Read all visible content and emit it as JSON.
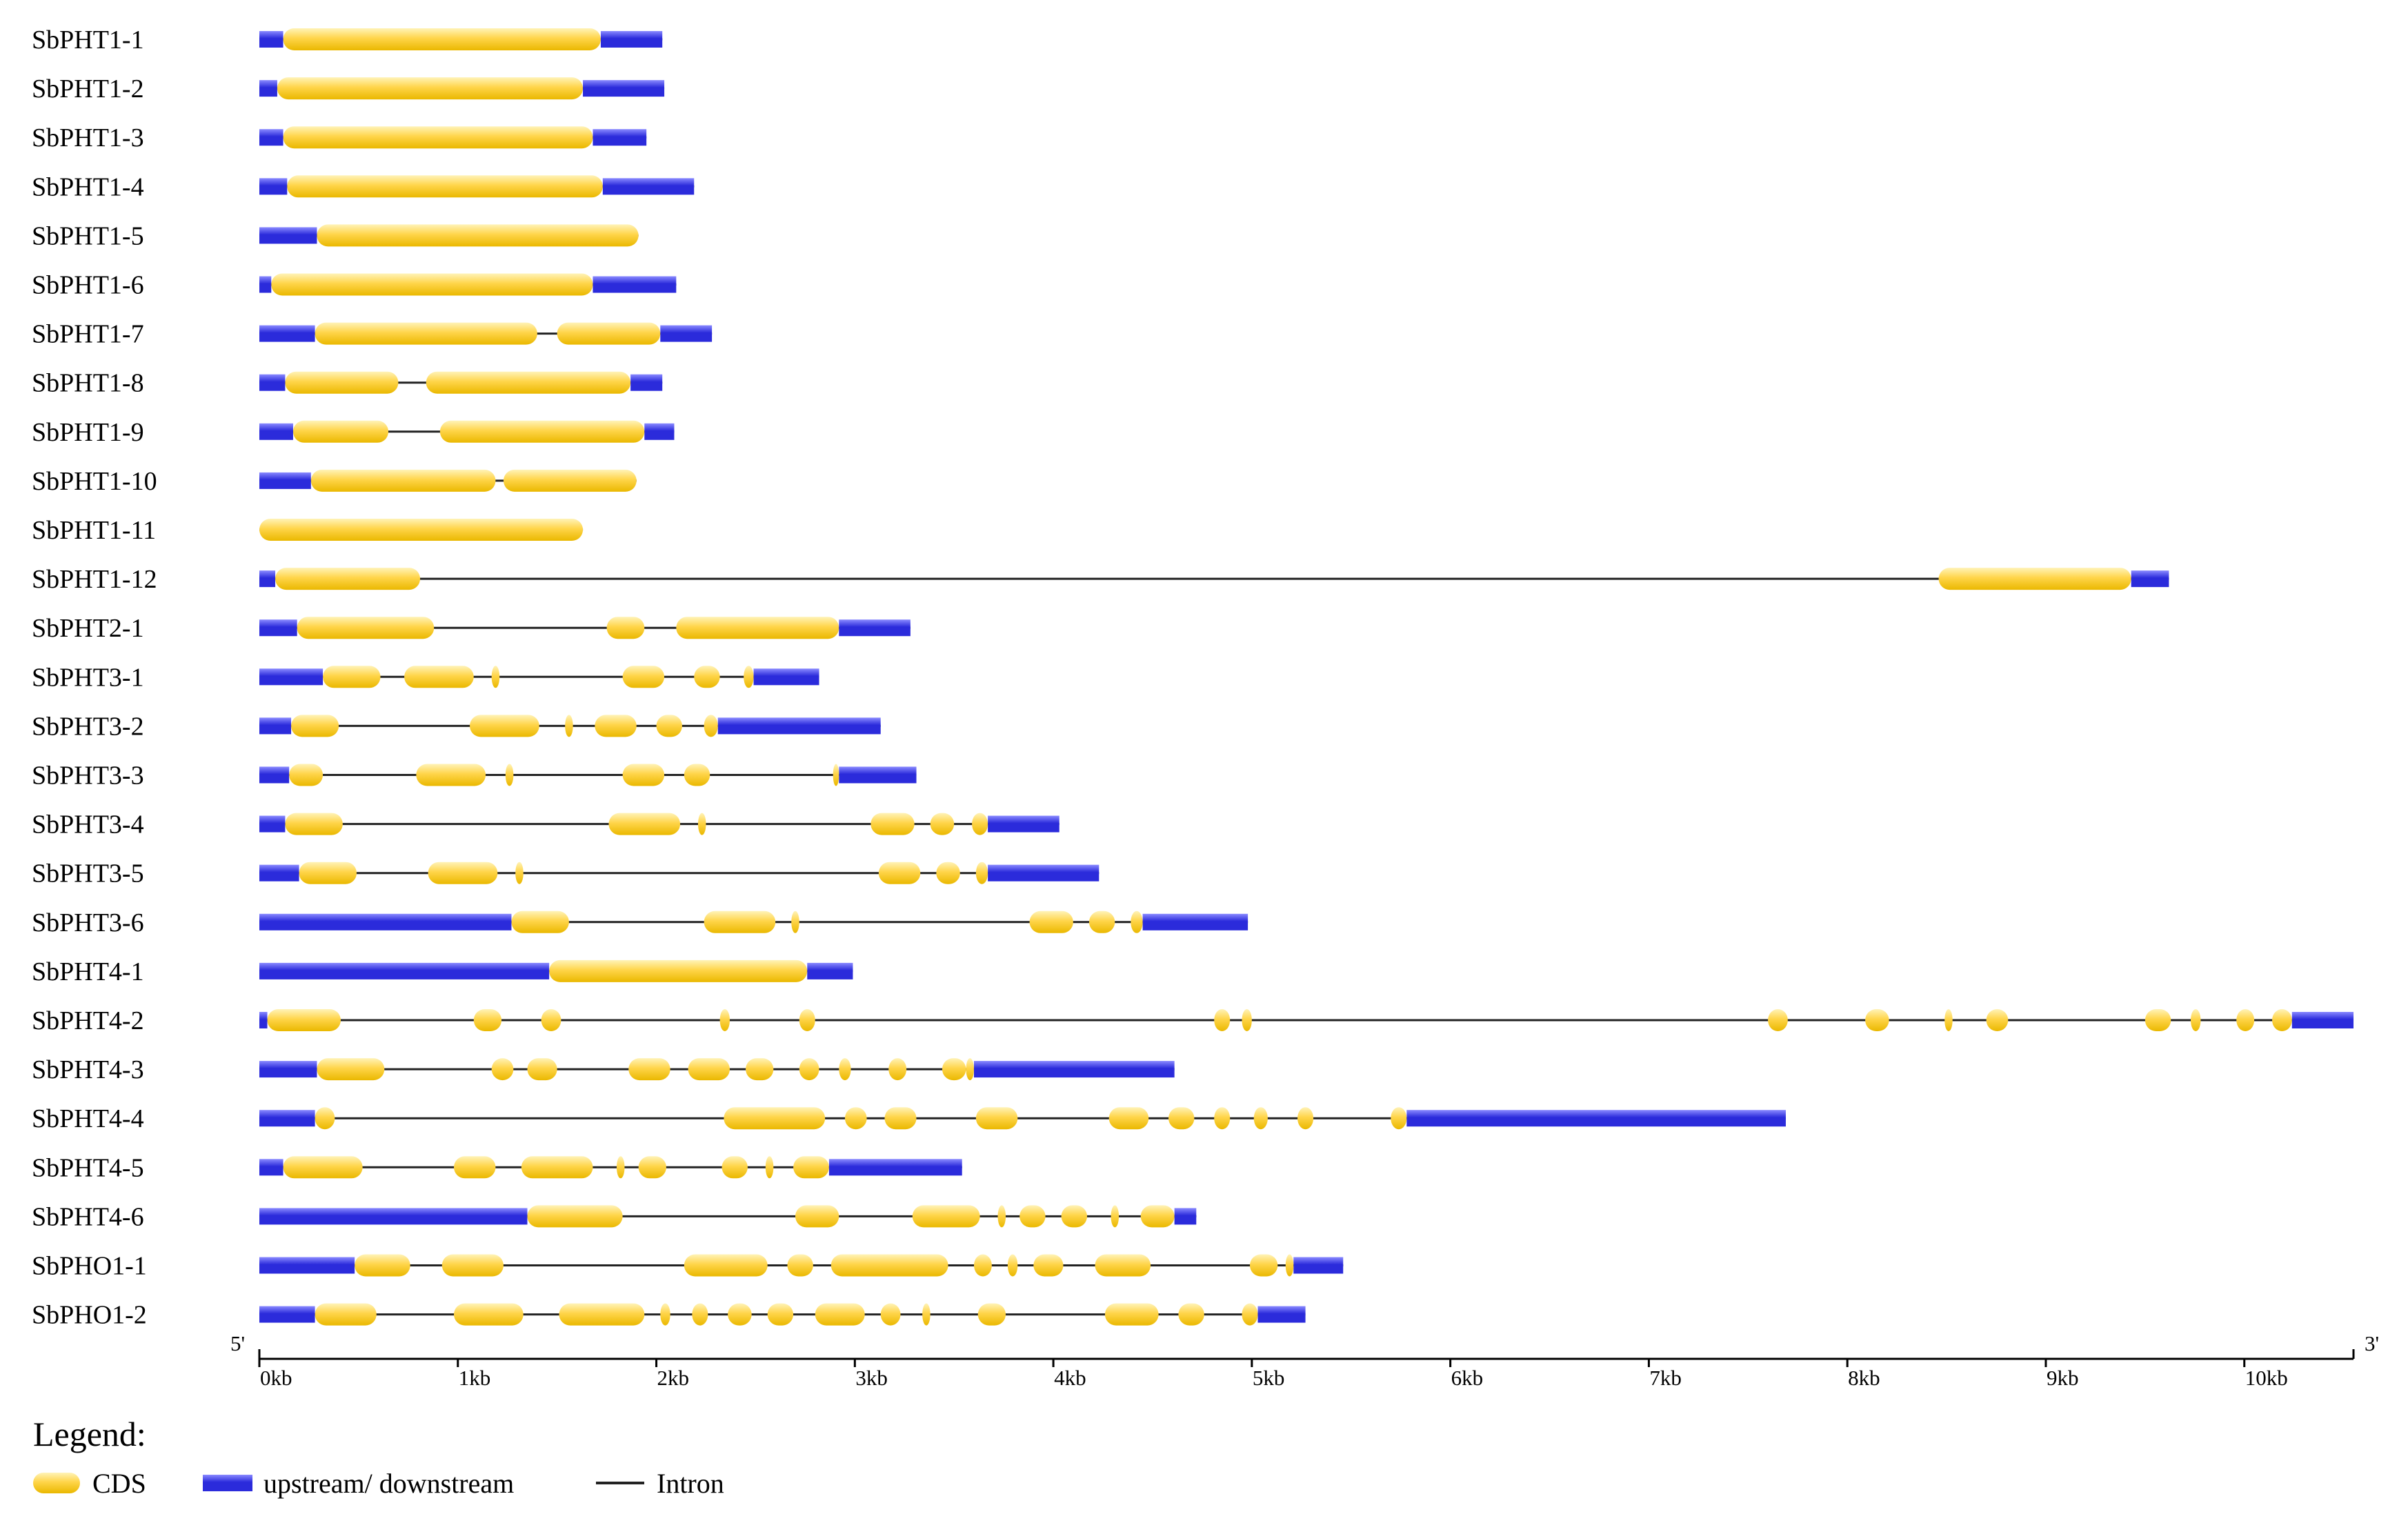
{
  "colors": {
    "cds": "#ffd54a",
    "cds_edge": "#eab800",
    "utr": "#2b2bdb",
    "utr_light": "#8a8aff",
    "intron": "#222222",
    "axis": "#000000"
  },
  "chart_data": {
    "type": "gene-structure",
    "x_unit": "kb",
    "x_range": [
      0,
      10.55
    ],
    "five_prime_label": "5'",
    "three_prime_label": "3'",
    "ticks": [
      {
        "value": 0,
        "label": "0kb"
      },
      {
        "value": 1,
        "label": "1kb"
      },
      {
        "value": 2,
        "label": "2kb"
      },
      {
        "value": 3,
        "label": "3kb"
      },
      {
        "value": 4,
        "label": "4kb"
      },
      {
        "value": 5,
        "label": "5kb"
      },
      {
        "value": 6,
        "label": "6kb"
      },
      {
        "value": 7,
        "label": "7kb"
      },
      {
        "value": 8,
        "label": "8kb"
      },
      {
        "value": 9,
        "label": "9kb"
      },
      {
        "value": 10,
        "label": "10kb"
      }
    ],
    "genes": [
      {
        "name": "SbPHT1-1",
        "length": 2.03,
        "utr": [
          [
            0,
            0.12
          ],
          [
            1.72,
            2.03
          ]
        ],
        "cds": [
          [
            0.12,
            1.72
          ]
        ]
      },
      {
        "name": "SbPHT1-2",
        "length": 2.04,
        "utr": [
          [
            0,
            0.09
          ],
          [
            1.63,
            2.04
          ]
        ],
        "cds": [
          [
            0.09,
            1.63
          ]
        ]
      },
      {
        "name": "SbPHT1-3",
        "length": 1.95,
        "utr": [
          [
            0,
            0.12
          ],
          [
            1.68,
            1.95
          ]
        ],
        "cds": [
          [
            0.12,
            1.68
          ]
        ]
      },
      {
        "name": "SbPHT1-4",
        "length": 2.19,
        "utr": [
          [
            0,
            0.14
          ],
          [
            1.73,
            2.19
          ]
        ],
        "cds": [
          [
            0.14,
            1.73
          ]
        ]
      },
      {
        "name": "SbPHT1-5",
        "length": 1.91,
        "utr": [
          [
            0,
            0.29
          ]
        ],
        "cds": [
          [
            0.29,
            1.91
          ]
        ]
      },
      {
        "name": "SbPHT1-6",
        "length": 2.1,
        "utr": [
          [
            0,
            0.06
          ],
          [
            1.68,
            2.1
          ]
        ],
        "cds": [
          [
            0.06,
            1.68
          ]
        ]
      },
      {
        "name": "SbPHT1-7",
        "length": 2.28,
        "utr": [
          [
            0,
            0.28
          ],
          [
            2.02,
            2.28
          ]
        ],
        "cds": [
          [
            0.28,
            1.4
          ],
          [
            1.5,
            2.02
          ]
        ]
      },
      {
        "name": "SbPHT1-8",
        "length": 2.03,
        "utr": [
          [
            0,
            0.13
          ],
          [
            1.87,
            2.03
          ]
        ],
        "cds": [
          [
            0.13,
            0.7
          ],
          [
            0.84,
            1.87
          ]
        ]
      },
      {
        "name": "SbPHT1-9",
        "length": 2.09,
        "utr": [
          [
            0,
            0.17
          ],
          [
            1.94,
            2.09
          ]
        ],
        "cds": [
          [
            0.17,
            0.65
          ],
          [
            0.91,
            1.94
          ]
        ]
      },
      {
        "name": "SbPHT1-10",
        "length": 1.9,
        "utr": [
          [
            0,
            0.26
          ]
        ],
        "cds": [
          [
            0.26,
            1.19
          ],
          [
            1.23,
            1.9
          ]
        ]
      },
      {
        "name": "SbPHT1-11",
        "length": 1.63,
        "utr": [],
        "cds": [
          [
            0,
            1.63
          ]
        ]
      },
      {
        "name": "SbPHT1-12",
        "length": 9.62,
        "utr": [
          [
            0,
            0.08
          ],
          [
            9.43,
            9.62
          ]
        ],
        "cds": [
          [
            0.08,
            0.81
          ],
          [
            8.46,
            9.43
          ]
        ]
      },
      {
        "name": "SbPHT2-1",
        "length": 3.28,
        "utr": [
          [
            0,
            0.19
          ],
          [
            2.92,
            3.28
          ]
        ],
        "cds": [
          [
            0.19,
            0.88
          ],
          [
            1.75,
            1.94
          ],
          [
            2.1,
            2.92
          ]
        ]
      },
      {
        "name": "SbPHT3-1",
        "length": 2.82,
        "utr": [
          [
            0,
            0.32
          ],
          [
            2.49,
            2.82
          ]
        ],
        "cds": [
          [
            0.32,
            0.61
          ],
          [
            0.73,
            1.08
          ],
          [
            1.17,
            1.21
          ],
          [
            1.83,
            2.04
          ],
          [
            2.19,
            2.32
          ],
          [
            2.44,
            2.49
          ]
        ]
      },
      {
        "name": "SbPHT3-2",
        "length": 3.13,
        "utr": [
          [
            0,
            0.16
          ],
          [
            2.31,
            3.13
          ]
        ],
        "cds": [
          [
            0.16,
            0.4
          ],
          [
            1.06,
            1.41
          ],
          [
            1.54,
            1.58
          ],
          [
            1.69,
            1.9
          ],
          [
            2.0,
            2.13
          ],
          [
            2.24,
            2.31
          ]
        ]
      },
      {
        "name": "SbPHT3-3",
        "length": 3.31,
        "utr": [
          [
            0,
            0.15
          ],
          [
            2.92,
            3.31
          ]
        ],
        "cds": [
          [
            0.15,
            0.32
          ],
          [
            0.79,
            1.14
          ],
          [
            1.24,
            1.28
          ],
          [
            1.83,
            2.04
          ],
          [
            2.14,
            2.27
          ],
          [
            2.89,
            2.92
          ]
        ]
      },
      {
        "name": "SbPHT3-4",
        "length": 4.03,
        "utr": [
          [
            0,
            0.13
          ],
          [
            3.67,
            4.03
          ]
        ],
        "cds": [
          [
            0.13,
            0.42
          ],
          [
            1.76,
            2.12
          ],
          [
            2.21,
            2.25
          ],
          [
            3.08,
            3.3
          ],
          [
            3.38,
            3.5
          ],
          [
            3.59,
            3.67
          ]
        ]
      },
      {
        "name": "SbPHT3-5",
        "length": 4.23,
        "utr": [
          [
            0,
            0.2
          ],
          [
            3.67,
            4.23
          ]
        ],
        "cds": [
          [
            0.2,
            0.49
          ],
          [
            0.85,
            1.2
          ],
          [
            1.29,
            1.33
          ],
          [
            3.12,
            3.33
          ],
          [
            3.41,
            3.53
          ],
          [
            3.61,
            3.67
          ]
        ]
      },
      {
        "name": "SbPHT3-6",
        "length": 4.98,
        "utr": [
          [
            0,
            1.27
          ],
          [
            4.45,
            4.98
          ]
        ],
        "cds": [
          [
            1.27,
            1.56
          ],
          [
            2.24,
            2.6
          ],
          [
            2.68,
            2.72
          ],
          [
            3.88,
            4.1
          ],
          [
            4.18,
            4.31
          ],
          [
            4.39,
            4.45
          ]
        ]
      },
      {
        "name": "SbPHT4-1",
        "length": 2.99,
        "utr": [
          [
            0,
            1.46
          ],
          [
            2.76,
            2.99
          ]
        ],
        "cds": [
          [
            1.46,
            2.76
          ]
        ]
      },
      {
        "name": "SbPHT4-2",
        "length": 10.55,
        "utr": [
          [
            0,
            0.04
          ],
          [
            10.24,
            10.55
          ]
        ],
        "cds": [
          [
            0.04,
            0.41
          ],
          [
            1.08,
            1.22
          ],
          [
            1.42,
            1.52
          ],
          [
            2.32,
            2.37
          ],
          [
            2.72,
            2.8
          ],
          [
            4.81,
            4.89
          ],
          [
            4.95,
            5.0
          ],
          [
            7.6,
            7.7
          ],
          [
            8.09,
            8.21
          ],
          [
            8.49,
            8.53
          ],
          [
            8.7,
            8.81
          ],
          [
            9.5,
            9.63
          ],
          [
            9.73,
            9.78
          ],
          [
            9.96,
            10.05
          ],
          [
            10.14,
            10.24
          ]
        ]
      },
      {
        "name": "SbPHT4-3",
        "length": 4.61,
        "utr": [
          [
            0,
            0.29
          ],
          [
            3.6,
            4.61
          ]
        ],
        "cds": [
          [
            0.29,
            0.63
          ],
          [
            1.17,
            1.28
          ],
          [
            1.35,
            1.5
          ],
          [
            1.86,
            2.07
          ],
          [
            2.16,
            2.37
          ],
          [
            2.45,
            2.59
          ],
          [
            2.72,
            2.82
          ],
          [
            2.92,
            2.98
          ],
          [
            3.17,
            3.26
          ],
          [
            3.44,
            3.56
          ],
          [
            3.56,
            3.6
          ]
        ]
      },
      {
        "name": "SbPHT4-4",
        "length": 7.69,
        "utr": [
          [
            0,
            0.28
          ],
          [
            5.78,
            7.69
          ]
        ],
        "cds": [
          [
            0.28,
            0.38
          ],
          [
            2.34,
            2.85
          ],
          [
            2.95,
            3.06
          ],
          [
            3.15,
            3.31
          ],
          [
            3.61,
            3.82
          ],
          [
            4.28,
            4.48
          ],
          [
            4.58,
            4.71
          ],
          [
            4.81,
            4.89
          ],
          [
            5.01,
            5.08
          ],
          [
            5.23,
            5.31
          ],
          [
            5.7,
            5.78
          ]
        ]
      },
      {
        "name": "SbPHT4-5",
        "length": 3.54,
        "utr": [
          [
            0,
            0.12
          ],
          [
            2.87,
            3.54
          ]
        ],
        "cds": [
          [
            0.12,
            0.52
          ],
          [
            0.98,
            1.19
          ],
          [
            1.32,
            1.68
          ],
          [
            1.8,
            1.84
          ],
          [
            1.91,
            2.05
          ],
          [
            2.33,
            2.46
          ],
          [
            2.55,
            2.59
          ],
          [
            2.69,
            2.87
          ]
        ]
      },
      {
        "name": "SbPHT4-6",
        "length": 4.72,
        "utr": [
          [
            0,
            1.35
          ],
          [
            4.61,
            4.72
          ]
        ],
        "cds": [
          [
            1.35,
            1.83
          ],
          [
            2.7,
            2.92
          ],
          [
            3.29,
            3.63
          ],
          [
            3.72,
            3.76
          ],
          [
            3.83,
            3.96
          ],
          [
            4.04,
            4.17
          ],
          [
            4.29,
            4.33
          ],
          [
            4.44,
            4.61
          ]
        ]
      },
      {
        "name": "SbPHO1-1",
        "length": 5.46,
        "utr": [
          [
            0,
            0.48
          ],
          [
            5.21,
            5.46
          ]
        ],
        "cds": [
          [
            0.48,
            0.76
          ],
          [
            0.92,
            1.23
          ],
          [
            2.14,
            2.56
          ],
          [
            2.66,
            2.79
          ],
          [
            2.88,
            3.47
          ],
          [
            3.6,
            3.69
          ],
          [
            3.77,
            3.82
          ],
          [
            3.9,
            4.05
          ],
          [
            4.21,
            4.49
          ],
          [
            4.99,
            5.13
          ],
          [
            5.17,
            5.21
          ]
        ]
      },
      {
        "name": "SbPHO1-2",
        "length": 5.27,
        "utr": [
          [
            0,
            0.28
          ],
          [
            5.03,
            5.27
          ]
        ],
        "cds": [
          [
            0.28,
            0.59
          ],
          [
            0.98,
            1.33
          ],
          [
            1.51,
            1.94
          ],
          [
            2.02,
            2.07
          ],
          [
            2.18,
            2.26
          ],
          [
            2.36,
            2.48
          ],
          [
            2.56,
            2.69
          ],
          [
            2.8,
            3.05
          ],
          [
            3.13,
            3.23
          ],
          [
            3.34,
            3.38
          ],
          [
            3.62,
            3.76
          ],
          [
            4.26,
            4.53
          ],
          [
            4.63,
            4.76
          ],
          [
            4.95,
            5.03
          ]
        ]
      }
    ]
  },
  "legend": {
    "title": "Legend:",
    "items": [
      {
        "key": "cds",
        "label": "CDS"
      },
      {
        "key": "utr",
        "label": "upstream/ downstream"
      },
      {
        "key": "intron",
        "label": "Intron"
      }
    ]
  }
}
